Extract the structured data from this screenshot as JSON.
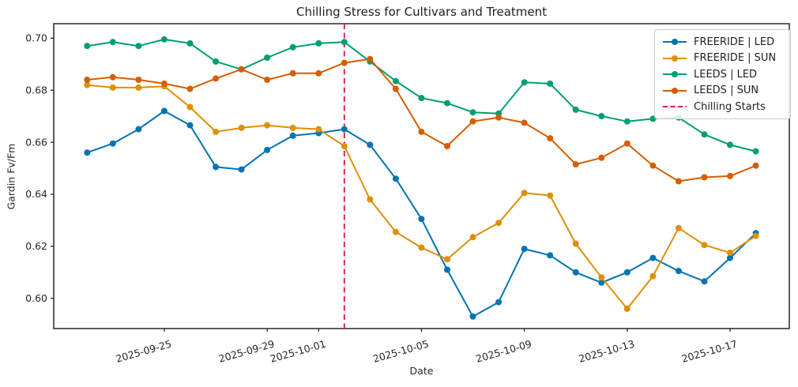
{
  "chart": {
    "title": "Chilling Stress for Cultivars and Treatment",
    "xlabel": "Date",
    "ylabel": "Gardin Fv/Fm"
  },
  "chart_data": {
    "type": "line",
    "title": "Chilling Stress for Cultivars and Treatment",
    "xlabel": "Date",
    "ylabel": "Gardin Fv/Fm",
    "grid": false,
    "legend_position": "upper right",
    "marker": "circle",
    "ylim": [
      0.588,
      0.7055
    ],
    "y_ticks": [
      0.6,
      0.62,
      0.64,
      0.66,
      0.68,
      0.7
    ],
    "y_tick_labels": [
      "0.60",
      "0.62",
      "0.64",
      "0.66",
      "0.68",
      "0.70"
    ],
    "x_tick_labels": [
      "2025-09-25",
      "2025-09-29",
      "2025-10-01",
      "2025-10-05",
      "2025-10-09",
      "2025-10-13",
      "2025-10-17"
    ],
    "x": [
      "2025-09-22",
      "2025-09-23",
      "2025-09-24",
      "2025-09-25",
      "2025-09-26",
      "2025-09-27",
      "2025-09-28",
      "2025-09-29",
      "2025-09-30",
      "2025-10-01",
      "2025-10-02",
      "2025-10-03",
      "2025-10-04",
      "2025-10-05",
      "2025-10-06",
      "2025-10-07",
      "2025-10-08",
      "2025-10-09",
      "2025-10-10",
      "2025-10-11",
      "2025-10-12",
      "2025-10-13",
      "2025-10-14",
      "2025-10-15",
      "2025-10-16",
      "2025-10-17",
      "2025-10-18"
    ],
    "series": [
      {
        "name": "FREERIDE | LED",
        "color": "#0173b2",
        "values": [
          0.656,
          0.6595,
          0.665,
          0.672,
          0.6665,
          0.6505,
          0.6495,
          0.657,
          0.6625,
          0.6635,
          0.665,
          0.659,
          0.646,
          0.6305,
          0.611,
          0.593,
          0.5985,
          0.619,
          0.6165,
          0.61,
          0.606,
          0.61,
          0.6155,
          0.6105,
          0.6065,
          0.6155,
          0.625
        ]
      },
      {
        "name": "FREERIDE | SUN",
        "color": "#de8f05",
        "values": [
          0.682,
          0.681,
          0.681,
          0.6815,
          0.6735,
          0.664,
          0.6655,
          0.6665,
          0.6655,
          0.665,
          0.6585,
          0.638,
          0.6255,
          0.6195,
          0.615,
          0.6235,
          0.629,
          0.6405,
          0.6395,
          0.621,
          0.608,
          0.596,
          0.6085,
          0.627,
          0.6205,
          0.6175,
          0.624
        ]
      },
      {
        "name": "LEEDS | LED",
        "color": "#029e73",
        "values": [
          0.697,
          0.6985,
          0.697,
          0.6995,
          0.698,
          0.691,
          0.688,
          0.6925,
          0.6965,
          0.698,
          0.6985,
          0.691,
          0.6835,
          0.677,
          0.675,
          0.6715,
          0.671,
          0.683,
          0.6825,
          0.6725,
          0.67,
          0.668,
          0.669,
          0.6695,
          0.663,
          0.659,
          0.6565
        ]
      },
      {
        "name": "LEEDS | SUN",
        "color": "#d55e00",
        "values": [
          0.684,
          0.685,
          0.684,
          0.6825,
          0.6805,
          0.6845,
          0.688,
          0.684,
          0.6865,
          0.6865,
          0.6905,
          0.692,
          0.6805,
          0.664,
          0.6585,
          0.668,
          0.6695,
          0.6675,
          0.6615,
          0.6515,
          0.654,
          0.6595,
          0.651,
          0.645,
          0.6465,
          0.647,
          0.651
        ]
      }
    ],
    "vline": {
      "label": "Chilling Starts",
      "x": "2025-10-02",
      "color": "#dc143c",
      "style": "dashed"
    }
  }
}
